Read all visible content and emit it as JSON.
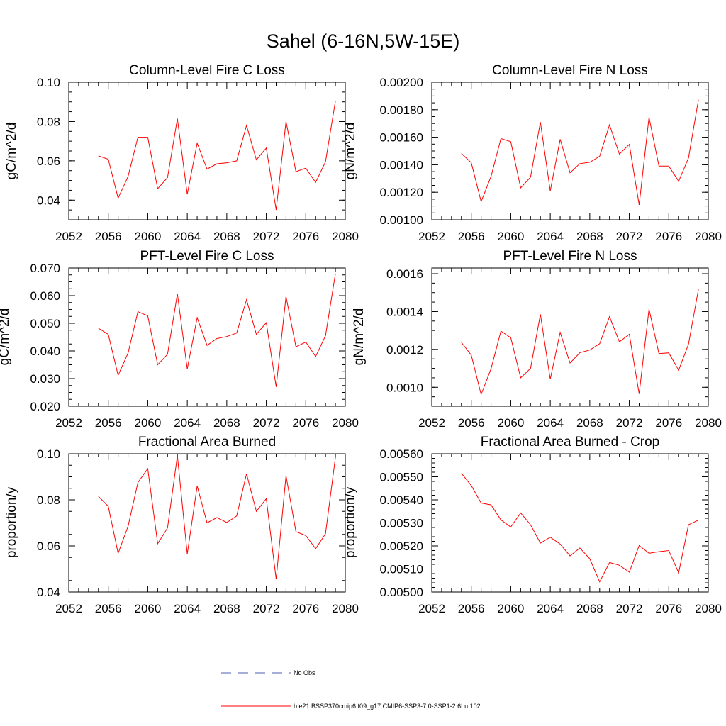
{
  "figure": {
    "title": "Sahel (6-16N,5W-15E)",
    "legend": [
      {
        "label": "No Obs",
        "style": "dashed",
        "color": "#4b5fb4"
      },
      {
        "label": "b.e21.BSSP370cmip6.f09_g17.CMIP6-SSP3-7.0-SSP1-2.6Lu.102",
        "style": "solid",
        "color": "#ff0000"
      }
    ]
  },
  "chart_data": [
    {
      "type": "line",
      "title": "Column-Level Fire C Loss",
      "ylabel": "gC/m^2/d",
      "xlim": [
        2052,
        2080
      ],
      "ylim": [
        0.03,
        0.1
      ],
      "xticks": [
        "2052",
        "2056",
        "2060",
        "2064",
        "2068",
        "2072",
        "2076",
        "2080"
      ],
      "yticks": [
        {
          "value": 0.04,
          "label": "0.04"
        },
        {
          "value": 0.06,
          "label": "0.06"
        },
        {
          "value": 0.08,
          "label": "0.08"
        },
        {
          "value": 0.1,
          "label": "0.10"
        }
      ],
      "y_minor_step": 0.005,
      "series": [
        {
          "color": "#ff0000",
          "x": [
            2055,
            2056,
            2057,
            2058,
            2059,
            2060,
            2061,
            2062,
            2063,
            2064,
            2065,
            2066,
            2067,
            2068,
            2069,
            2070,
            2071,
            2072,
            2073,
            2074,
            2075,
            2076,
            2077,
            2078,
            2079
          ],
          "y": [
            0.0625,
            0.0608,
            0.041,
            0.052,
            0.072,
            0.072,
            0.0458,
            0.0515,
            0.0815,
            0.043,
            0.069,
            0.0558,
            0.0585,
            0.059,
            0.06,
            0.078,
            0.0605,
            0.0665,
            0.035,
            0.08,
            0.0545,
            0.0563,
            0.049,
            0.0595,
            0.0905
          ]
        }
      ]
    },
    {
      "type": "line",
      "title": "Column-Level Fire N Loss",
      "ylabel": "gN/m^2/d",
      "xlim": [
        2052,
        2080
      ],
      "ylim": [
        0.001,
        0.002
      ],
      "xticks": [
        "2052",
        "2056",
        "2060",
        "2064",
        "2068",
        "2072",
        "2076",
        "2080"
      ],
      "yticks": [
        {
          "value": 0.001,
          "label": "0.00100"
        },
        {
          "value": 0.0012,
          "label": "0.00120"
        },
        {
          "value": 0.0014,
          "label": "0.00140"
        },
        {
          "value": 0.0016,
          "label": "0.00160"
        },
        {
          "value": 0.0018,
          "label": "0.00180"
        },
        {
          "value": 0.002,
          "label": "0.00200"
        }
      ],
      "y_minor_step": 5e-05,
      "series": [
        {
          "color": "#ff0000",
          "x": [
            2055,
            2056,
            2057,
            2058,
            2059,
            2060,
            2061,
            2062,
            2063,
            2064,
            2065,
            2066,
            2067,
            2068,
            2069,
            2070,
            2071,
            2072,
            2073,
            2074,
            2075,
            2076,
            2077,
            2078,
            2079
          ],
          "y": [
            0.001482,
            0.001415,
            0.001132,
            0.001315,
            0.00159,
            0.001568,
            0.001232,
            0.00131,
            0.00171,
            0.00121,
            0.001585,
            0.001342,
            0.001408,
            0.001418,
            0.001462,
            0.00169,
            0.001478,
            0.001548,
            0.001108,
            0.001745,
            0.00139,
            0.00139,
            0.00128,
            0.00145,
            0.001872
          ]
        }
      ]
    },
    {
      "type": "line",
      "title": "PFT-Level Fire C Loss",
      "ylabel": "gC/m^2/d",
      "xlim": [
        2052,
        2080
      ],
      "ylim": [
        0.02,
        0.07
      ],
      "xticks": [
        "2052",
        "2056",
        "2060",
        "2064",
        "2068",
        "2072",
        "2076",
        "2080"
      ],
      "yticks": [
        {
          "value": 0.02,
          "label": "0.020"
        },
        {
          "value": 0.03,
          "label": "0.030"
        },
        {
          "value": 0.04,
          "label": "0.040"
        },
        {
          "value": 0.05,
          "label": "0.050"
        },
        {
          "value": 0.06,
          "label": "0.060"
        },
        {
          "value": 0.07,
          "label": "0.070"
        }
      ],
      "y_minor_step": 0.0025,
      "series": [
        {
          "color": "#ff0000",
          "x": [
            2055,
            2056,
            2057,
            2058,
            2059,
            2060,
            2061,
            2062,
            2063,
            2064,
            2065,
            2066,
            2067,
            2068,
            2069,
            2070,
            2071,
            2072,
            2073,
            2074,
            2075,
            2076,
            2077,
            2078,
            2079
          ],
          "y": [
            0.0482,
            0.046,
            0.0312,
            0.0392,
            0.0542,
            0.0527,
            0.035,
            0.0388,
            0.0607,
            0.0335,
            0.052,
            0.042,
            0.0445,
            0.0452,
            0.0465,
            0.0585,
            0.046,
            0.0502,
            0.027,
            0.0597,
            0.0415,
            0.0432,
            0.038,
            0.0455,
            0.068
          ]
        }
      ]
    },
    {
      "type": "line",
      "title": "PFT-Level Fire N Loss",
      "ylabel": "gN/m^2/d",
      "xlim": [
        2052,
        2080
      ],
      "ylim": [
        0.0009,
        0.00163
      ],
      "xticks": [
        "2052",
        "2056",
        "2060",
        "2064",
        "2068",
        "2072",
        "2076",
        "2080"
      ],
      "yticks": [
        {
          "value": 0.001,
          "label": "0.0010"
        },
        {
          "value": 0.0012,
          "label": "0.0012"
        },
        {
          "value": 0.0014,
          "label": "0.0014"
        },
        {
          "value": 0.0016,
          "label": "0.0016"
        }
      ],
      "y_minor_step": 5e-05,
      "series": [
        {
          "color": "#ff0000",
          "x": [
            2055,
            2056,
            2057,
            2058,
            2059,
            2060,
            2061,
            2062,
            2063,
            2064,
            2065,
            2066,
            2067,
            2068,
            2069,
            2070,
            2071,
            2072,
            2073,
            2074,
            2075,
            2076,
            2077,
            2078,
            2079
          ],
          "y": [
            0.001237,
            0.00117,
            0.000962,
            0.001098,
            0.001297,
            0.001262,
            0.00105,
            0.0011,
            0.001385,
            0.001043,
            0.00129,
            0.001128,
            0.001183,
            0.001197,
            0.00123,
            0.001373,
            0.00124,
            0.00128,
            0.000965,
            0.001413,
            0.001178,
            0.001182,
            0.00109,
            0.001228,
            0.001517
          ]
        }
      ]
    },
    {
      "type": "line",
      "title": "Fractional Area Burned",
      "ylabel": "proportion/y",
      "xlim": [
        2052,
        2080
      ],
      "ylim": [
        0.04,
        0.1
      ],
      "xticks": [
        "2052",
        "2056",
        "2060",
        "2064",
        "2068",
        "2072",
        "2076",
        "2080"
      ],
      "yticks": [
        {
          "value": 0.04,
          "label": "0.04"
        },
        {
          "value": 0.06,
          "label": "0.06"
        },
        {
          "value": 0.08,
          "label": "0.08"
        },
        {
          "value": 0.1,
          "label": "0.10"
        }
      ],
      "y_minor_step": 0.005,
      "series": [
        {
          "color": "#ff0000",
          "x": [
            2055,
            2056,
            2057,
            2058,
            2059,
            2060,
            2061,
            2062,
            2063,
            2064,
            2065,
            2066,
            2067,
            2068,
            2069,
            2070,
            2071,
            2072,
            2073,
            2074,
            2075,
            2076,
            2077,
            2078,
            2079
          ],
          "y": [
            0.0815,
            0.0772,
            0.0568,
            0.0685,
            0.0875,
            0.0935,
            0.061,
            0.0678,
            0.0992,
            0.0565,
            0.086,
            0.07,
            0.0723,
            0.0702,
            0.073,
            0.0913,
            0.075,
            0.0805,
            0.0455,
            0.0905,
            0.0662,
            0.0645,
            0.0588,
            0.0653,
            0.0985
          ]
        }
      ]
    },
    {
      "type": "line",
      "title": "Fractional Area Burned - Crop",
      "ylabel": "proportion/y",
      "xlim": [
        2052,
        2080
      ],
      "ylim": [
        0.005,
        0.0056
      ],
      "xticks": [
        "2052",
        "2056",
        "2060",
        "2064",
        "2068",
        "2072",
        "2076",
        "2080"
      ],
      "yticks": [
        {
          "value": 0.005,
          "label": "0.00500"
        },
        {
          "value": 0.0051,
          "label": "0.00510"
        },
        {
          "value": 0.0052,
          "label": "0.00520"
        },
        {
          "value": 0.0053,
          "label": "0.00530"
        },
        {
          "value": 0.0054,
          "label": "0.00540"
        },
        {
          "value": 0.0055,
          "label": "0.00550"
        },
        {
          "value": 0.0056,
          "label": "0.00560"
        }
      ],
      "y_minor_step": 2e-05,
      "series": [
        {
          "color": "#ff0000",
          "x": [
            2055,
            2056,
            2057,
            2058,
            2059,
            2060,
            2061,
            2062,
            2063,
            2064,
            2065,
            2066,
            2067,
            2068,
            2069,
            2070,
            2071,
            2072,
            2073,
            2074,
            2075,
            2076,
            2077,
            2078,
            2079
          ],
          "y": [
            0.005515,
            0.005462,
            0.005386,
            0.005378,
            0.005313,
            0.005282,
            0.005343,
            0.005292,
            0.005212,
            0.005238,
            0.005208,
            0.005157,
            0.005191,
            0.005144,
            0.005044,
            0.005128,
            0.005116,
            0.005086,
            0.005202,
            0.005168,
            0.005175,
            0.00518,
            0.005083,
            0.005292,
            0.005312
          ]
        }
      ]
    }
  ]
}
